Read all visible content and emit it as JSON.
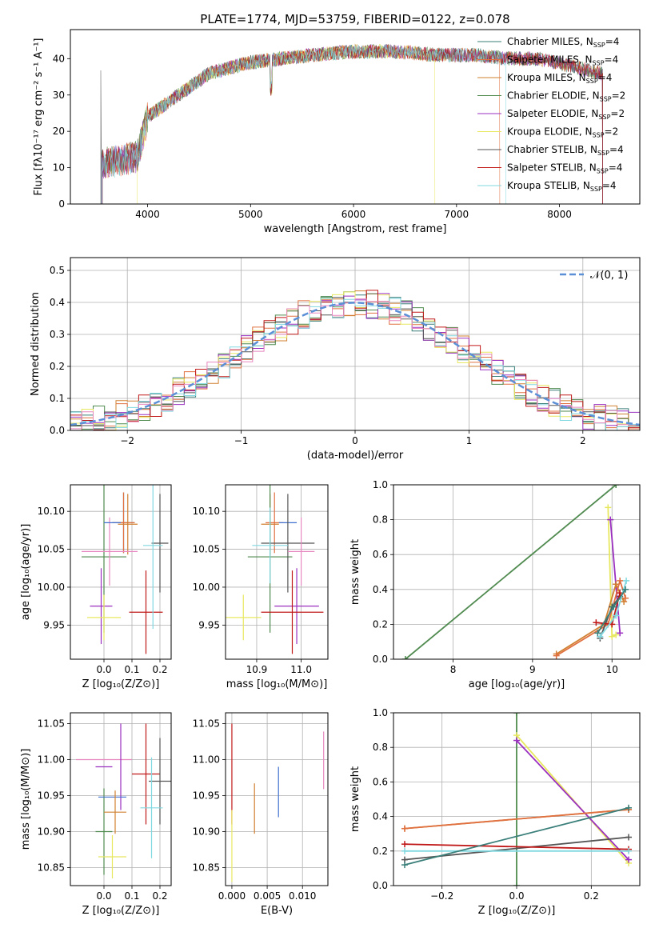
{
  "title": "PLATE=1774, MJD=53759, FIBERID=0122, z=0.078",
  "colors": {
    "Chabrier MILES": "#3a7f7a",
    "Salpeter MILES": "#e07040",
    "Kroupa MILES": "#d08030",
    "Chabrier ELODIE": "#4f8a4f",
    "Salpeter ELODIE": "#9b30c0",
    "Kroupa ELODIE": "#e8e860",
    "Chabrier STELIB": "#555555",
    "Salpeter STELIB": "#c01818",
    "Kroupa STELIB": "#80d8e0",
    "pink": "#e888c0",
    "blue": "#4070d0",
    "normal": "#5b8fd6"
  },
  "chart_data": [
    {
      "type": "line",
      "title": "PLATE=1774, MJD=53759, FIBERID=0122, z=0.078",
      "xlabel": "wavelength [Angstrom, rest frame]",
      "ylabel": "Flux [fλ10⁻¹⁷ erg cm⁻² s⁻¹ A⁻¹]",
      "xlim": [
        3250,
        8780
      ],
      "ylim": [
        0,
        48
      ],
      "xticks": [
        4000,
        5000,
        6000,
        7000,
        8000
      ],
      "yticks": [
        0,
        10,
        20,
        30,
        40
      ],
      "grid": false,
      "legend_position": "right",
      "legend": [
        "Chabrier MILES, N_SSP=4",
        "Salpeter MILES, N_SSP=4",
        "Kroupa MILES, N_SSP=4",
        "Chabrier ELODIE, N_SSP=2",
        "Salpeter ELODIE, N_SSP=2",
        "Kroupa ELODIE, N_SSP=2",
        "Chabrier STELIB, N_SSP=4",
        "Salpeter STELIB, N_SSP=4",
        "Kroupa STELIB, N_SSP=4"
      ],
      "legend_series": [
        "Chabrier MILES",
        "Salpeter MILES",
        "Kroupa MILES",
        "Chabrier ELODIE",
        "Salpeter ELODIE",
        "Kroupa ELODIE",
        "Chabrier STELIB",
        "Salpeter STELIB",
        "Kroupa STELIB"
      ],
      "spectrum_envelope": {
        "x": [
          3550,
          3900,
          4000,
          4300,
          4600,
          5000,
          5300,
          5600,
          6000,
          6400,
          6800,
          7200,
          7500,
          7800,
          8100,
          8400
        ],
        "y": [
          11,
          13,
          24,
          30,
          36,
          39,
          40,
          41,
          42,
          42,
          41,
          41,
          40,
          40,
          38,
          36
        ]
      }
    },
    {
      "type": "bar",
      "subtype": "step-histogram",
      "xlabel": "(data-model)/error",
      "ylabel": "Normed distribution",
      "xlim": [
        -2.5,
        2.5
      ],
      "ylim": [
        0,
        0.54
      ],
      "xticks": [
        -2,
        -1,
        0,
        1,
        2
      ],
      "yticks": [
        0.0,
        0.1,
        0.2,
        0.3,
        0.4,
        0.5
      ],
      "grid": true,
      "legend_position": "top-right",
      "legend": [
        "𝒩(0, 1)"
      ],
      "bin_edges": [
        -2.5,
        -2.4,
        -2.3,
        -2.2,
        -2.1,
        -2.0,
        -1.9,
        -1.8,
        -1.7,
        -1.6,
        -1.5,
        -1.4,
        -1.3,
        -1.2,
        -1.1,
        -1.0,
        -0.9,
        -0.8,
        -0.7,
        -0.6,
        -0.5,
        -0.4,
        -0.3,
        -0.2,
        -0.1,
        0.0,
        0.1,
        0.2,
        0.3,
        0.4,
        0.5,
        0.6,
        0.7,
        0.8,
        0.9,
        1.0,
        1.1,
        1.2,
        1.3,
        1.4,
        1.5,
        1.6,
        1.7,
        1.8,
        1.9,
        2.0,
        2.1,
        2.2,
        2.3,
        2.4,
        2.5
      ]
    },
    {
      "type": "scatter",
      "subtype": "errorbars",
      "xlabel": "Z [log₁₀(Z/Z⊙)]",
      "ylabel": "age  [log₁₀(age/yr)]",
      "xlim": [
        -0.12,
        0.24
      ],
      "ylim": [
        9.905,
        10.135
      ],
      "xticks": [
        0.0,
        0.1,
        0.2
      ],
      "yticks": [
        9.95,
        10.0,
        10.05,
        10.1
      ],
      "grid": true,
      "points": [
        {
          "color": "Chabrier MILES",
          "x": 0.07,
          "y": 10.085,
          "xerr": 0.04,
          "yerr": 0.04
        },
        {
          "color": "Salpeter MILES",
          "x": 0.07,
          "y": 10.085,
          "xerr": 0.04,
          "yerr": 0.04
        },
        {
          "color": "Kroupa MILES",
          "x": 0.085,
          "y": 10.083,
          "xerr": 0.035,
          "yerr": 0.04
        },
        {
          "color": "Chabrier ELODIE",
          "x": 0.0,
          "y": 10.04,
          "xerr": 0.08,
          "yerr": 0.1
        },
        {
          "color": "Salpeter ELODIE",
          "x": -0.01,
          "y": 9.975,
          "xerr": 0.04,
          "yerr": 0.05
        },
        {
          "color": "Kroupa ELODIE",
          "x": 0.0,
          "y": 9.96,
          "xerr": 0.06,
          "yerr": 0.03
        },
        {
          "color": "Chabrier STELIB",
          "x": 0.2,
          "y": 10.058,
          "xerr": 0.03,
          "yerr": 0.065
        },
        {
          "color": "Salpeter STELIB",
          "x": 0.15,
          "y": 9.967,
          "xerr": 0.06,
          "yerr": 0.055
        },
        {
          "color": "Kroupa STELIB",
          "x": 0.175,
          "y": 10.055,
          "xerr": 0.035,
          "yerr": 0.11
        },
        {
          "color": "pink",
          "x": 0.02,
          "y": 10.047,
          "xerr": 0.1,
          "yerr": 0.045
        },
        {
          "color": "blue",
          "x": 0.03,
          "y": 10.085,
          "xerr": 0.03,
          "yerr": 0.0
        }
      ]
    },
    {
      "type": "scatter",
      "subtype": "errorbars",
      "xlabel": "mass [log₁₀(M/M⊙)]",
      "ylabel": "",
      "xlim": [
        10.83,
        11.06
      ],
      "ylim": [
        9.905,
        10.135
      ],
      "xticks": [
        10.9,
        11.0
      ],
      "yticks": [
        9.95,
        10.0,
        10.05,
        10.1
      ],
      "grid": true,
      "points": [
        {
          "color": "Kroupa MILES",
          "x": 10.93,
          "y": 10.083,
          "xerr": 0.02,
          "yerr": 0.04
        },
        {
          "color": "Salpeter MILES",
          "x": 10.94,
          "y": 10.085,
          "xerr": 0.02,
          "yerr": 0.04
        },
        {
          "color": "blue",
          "x": 10.97,
          "y": 10.085,
          "xerr": 0.02,
          "yerr": 0.0
        },
        {
          "color": "Chabrier ELODIE",
          "x": 10.93,
          "y": 10.04,
          "xerr": 0.05,
          "yerr": 0.1
        },
        {
          "color": "Kroupa ELODIE",
          "x": 10.87,
          "y": 9.96,
          "xerr": 0.04,
          "yerr": 0.03
        },
        {
          "color": "Salpeter ELODIE",
          "x": 10.99,
          "y": 9.975,
          "xerr": 0.05,
          "yerr": 0.05
        },
        {
          "color": "Chabrier STELIB",
          "x": 10.97,
          "y": 10.058,
          "xerr": 0.06,
          "yerr": 0.065
        },
        {
          "color": "Salpeter STELIB",
          "x": 10.98,
          "y": 9.967,
          "xerr": 0.07,
          "yerr": 0.055
        },
        {
          "color": "Kroupa STELIB",
          "x": 10.93,
          "y": 10.055,
          "xerr": 0.04,
          "yerr": 0.05
        },
        {
          "color": "pink",
          "x": 11.0,
          "y": 10.047,
          "xerr": 0.03,
          "yerr": 0.045
        }
      ]
    },
    {
      "type": "line",
      "xlabel": "age  [log₁₀(age/yr)]",
      "ylabel": "mass weight",
      "xlim": [
        7.25,
        10.35
      ],
      "ylim": [
        0,
        1.0
      ],
      "xticks": [
        8,
        9,
        10
      ],
      "yticks": [
        0.0,
        0.2,
        0.4,
        0.6,
        0.8,
        1.0
      ],
      "grid": true,
      "series": [
        {
          "color": "Chabrier ELODIE",
          "x": [
            7.4,
            10.05
          ],
          "y": [
            0.0,
            1.0
          ]
        },
        {
          "color": "Kroupa ELODIE",
          "x": [
            9.95,
            10.0,
            10.05
          ],
          "y": [
            0.87,
            0.13,
            0.14
          ]
        },
        {
          "color": "Salpeter ELODIE",
          "x": [
            9.98,
            10.1
          ],
          "y": [
            0.8,
            0.15
          ]
        },
        {
          "color": "Kroupa MILES",
          "x": [
            9.3,
            9.9,
            10.05,
            10.15
          ],
          "y": [
            0.03,
            0.2,
            0.43,
            0.33
          ]
        },
        {
          "color": "Salpeter MILES",
          "x": [
            9.3,
            9.95,
            10.1,
            10.17
          ],
          "y": [
            0.02,
            0.2,
            0.45,
            0.35
          ]
        },
        {
          "color": "Chabrier STELIB",
          "x": [
            9.85,
            10.0,
            10.1
          ],
          "y": [
            0.12,
            0.3,
            0.36
          ]
        },
        {
          "color": "Salpeter STELIB",
          "x": [
            9.8,
            10.0,
            10.1
          ],
          "y": [
            0.21,
            0.2,
            0.38
          ]
        },
        {
          "color": "Kroupa STELIB",
          "x": [
            9.85,
            10.05,
            10.18
          ],
          "y": [
            0.13,
            0.25,
            0.45
          ]
        },
        {
          "color": "Chabrier MILES",
          "x": [
            9.82,
            10.02,
            10.17
          ],
          "y": [
            0.15,
            0.3,
            0.4
          ]
        }
      ]
    },
    {
      "type": "scatter",
      "subtype": "errorbars",
      "xlabel": "Z [log₁₀(Z/Z⊙)]",
      "ylabel": "mass [log₁₀(M/M⊙)]",
      "xlim": [
        -0.12,
        0.24
      ],
      "ylim": [
        10.825,
        11.065
      ],
      "xticks": [
        0.0,
        0.1,
        0.2
      ],
      "yticks": [
        10.85,
        10.9,
        10.95,
        11.0,
        11.05
      ],
      "grid": true,
      "points": [
        {
          "color": "pink",
          "x": 0.0,
          "y": 11.0,
          "xerr": 0.1,
          "yerr": 0.0
        },
        {
          "color": "Salpeter ELODIE",
          "x": 0.0,
          "y": 10.99,
          "xerr": 0.03,
          "yerr": 0.0
        },
        {
          "color": "Salpeter ELODIE",
          "x": 0.06,
          "y": 10.99,
          "xerr": 0.0,
          "yerr": 0.06
        },
        {
          "color": "Chabrier ELODIE",
          "x": 0.0,
          "y": 10.9,
          "xerr": 0.03,
          "yerr": 0.06
        },
        {
          "color": "blue",
          "x": 0.03,
          "y": 10.948,
          "xerr": 0.05,
          "yerr": 0.0
        },
        {
          "color": "Kroupa MILES",
          "x": 0.04,
          "y": 10.927,
          "xerr": 0.04,
          "yerr": 0.03
        },
        {
          "color": "Kroupa ELODIE",
          "x": 0.03,
          "y": 10.865,
          "xerr": 0.05,
          "yerr": 0.03
        },
        {
          "color": "Salpeter STELIB",
          "x": 0.15,
          "y": 10.98,
          "xerr": 0.05,
          "yerr": 0.07
        },
        {
          "color": "Chabrier STELIB",
          "x": 0.2,
          "y": 10.97,
          "xerr": 0.04,
          "yerr": 0.06
        },
        {
          "color": "Kroupa STELIB",
          "x": 0.17,
          "y": 10.933,
          "xerr": 0.04,
          "yerr": 0.07
        }
      ]
    },
    {
      "type": "scatter",
      "subtype": "errorbars",
      "xlabel": "E(B-V)",
      "ylabel": "",
      "xlim": [
        -0.0009,
        0.0136
      ],
      "ylim": [
        10.825,
        11.065
      ],
      "xticks": [
        0.0,
        0.005,
        0.01
      ],
      "yticks": [
        10.85,
        10.9,
        10.95,
        11.0,
        11.05
      ],
      "grid": true,
      "points": [
        {
          "color": "Salpeter STELIB",
          "x": 0.0,
          "y": 10.98,
          "xerr": 0.0,
          "yerr": 0.07
        },
        {
          "color": "Kroupa ELODIE",
          "x": 0.0,
          "y": 10.88,
          "xerr": 0.0,
          "yerr": 0.05
        },
        {
          "color": "Kroupa MILES",
          "x": 0.0032,
          "y": 10.932,
          "xerr": 0.0,
          "yerr": 0.035
        },
        {
          "color": "blue",
          "x": 0.0066,
          "y": 10.955,
          "xerr": 0.0,
          "yerr": 0.035
        },
        {
          "color": "pink",
          "x": 0.013,
          "y": 10.999,
          "xerr": 0.0,
          "yerr": 0.04
        }
      ]
    },
    {
      "type": "line",
      "xlabel": "Z [log₁₀(Z/Z⊙)]",
      "ylabel": "mass weight",
      "xlim": [
        -0.33,
        0.33
      ],
      "ylim": [
        0,
        1.0
      ],
      "xticks": [
        -0.2,
        0.0,
        0.2
      ],
      "yticks": [
        0.0,
        0.2,
        0.4,
        0.6,
        0.8,
        1.0
      ],
      "grid": true,
      "series": [
        {
          "color": "Chabrier ELODIE",
          "x": [
            0.0,
            0.0
          ],
          "y": [
            0.0,
            1.0
          ]
        },
        {
          "color": "Kroupa ELODIE",
          "x": [
            0.0,
            0.3
          ],
          "y": [
            0.87,
            0.13
          ]
        },
        {
          "color": "Salpeter ELODIE",
          "x": [
            0.0,
            0.3
          ],
          "y": [
            0.84,
            0.15
          ]
        },
        {
          "color": "Chabrier STELIB",
          "x": [
            -0.3,
            0.3
          ],
          "y": [
            0.15,
            0.28
          ]
        },
        {
          "color": "Salpeter STELIB",
          "x": [
            -0.3,
            0.3
          ],
          "y": [
            0.24,
            0.21
          ]
        },
        {
          "color": "Kroupa STELIB",
          "x": [
            -0.3,
            0.3
          ],
          "y": [
            0.2,
            0.2
          ]
        },
        {
          "color": "Kroupa MILES",
          "x": [
            -0.3,
            0.3
          ],
          "y": [
            0.33,
            0.44
          ]
        },
        {
          "color": "Salpeter MILES",
          "x": [
            -0.3,
            0.3
          ],
          "y": [
            0.33,
            0.44
          ]
        },
        {
          "color": "Chabrier MILES",
          "x": [
            -0.3,
            0.3
          ],
          "y": [
            0.12,
            0.45
          ]
        }
      ]
    }
  ]
}
